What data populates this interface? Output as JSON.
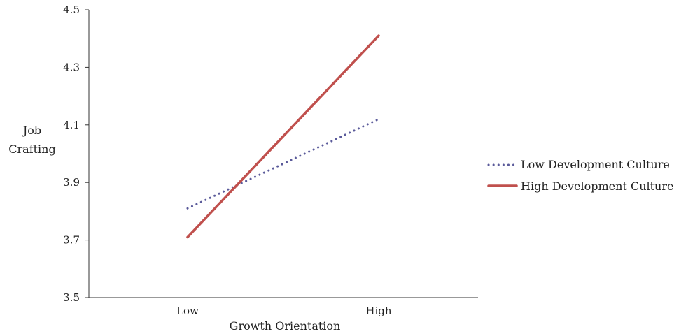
{
  "chart_data": {
    "type": "line",
    "xlabel": "Growth Orientation",
    "ylabel_lines": [
      "Job",
      "Crafting"
    ],
    "categories": [
      "Low",
      "High"
    ],
    "y_ticks": [
      "3.5",
      "3.7",
      "3.9",
      "4.1",
      "4.3",
      "4.5"
    ],
    "ylim": [
      3.5,
      4.5
    ],
    "grid": false,
    "legend_position": "right",
    "series": [
      {
        "name": "Low Development Culture",
        "values": [
          3.81,
          4.12
        ],
        "color": "#5a5a9a",
        "style": "dotted"
      },
      {
        "name": "High Development Culture",
        "values": [
          3.71,
          4.41
        ],
        "color": "#c0504d",
        "style": "solid"
      }
    ]
  }
}
